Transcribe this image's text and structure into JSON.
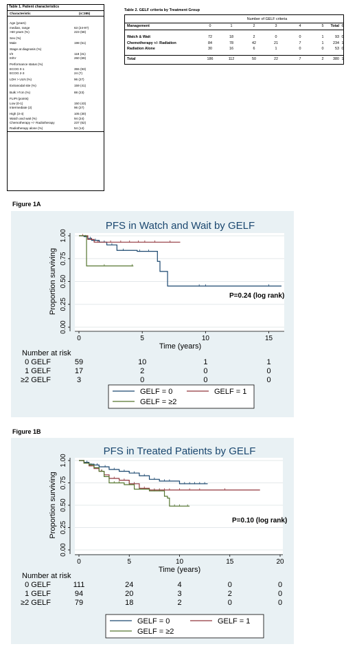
{
  "table1": {
    "title": "Table 1. Patient characteristics",
    "header": {
      "characteristic": "Characteristic",
      "n": "(n=385)"
    },
    "rows": [
      {
        "label": "Age (years)",
        "value": ""
      },
      {
        "label": "median, range",
        "value": "63 (24-97)"
      },
      {
        "label": ">60 years (%)",
        "value": "223 (58)"
      },
      {
        "label": "Sex (%)",
        "value": ""
      },
      {
        "label": "Male",
        "value": "198 (51)"
      },
      {
        "label": "Stage at diagnosis (%)",
        "value": ""
      },
      {
        "label": "I/II",
        "value": "118 (31)"
      },
      {
        "label": "III/IV",
        "value": "260 (69)"
      },
      {
        "label": "Performance status (%)",
        "value": ""
      },
      {
        "label": "ECOG 0-1",
        "value": "355 (93)"
      },
      {
        "label": "ECOG 2-3",
        "value": "24 (7)"
      },
      {
        "label": "LDH > ULN (%)",
        "value": "96 (27)"
      },
      {
        "label": "Extranodal site (%)",
        "value": "159 (41)"
      },
      {
        "label": "Bulk >7cm  (%)",
        "value": "88 (23)"
      },
      {
        "label": "FLIPI (points)",
        "value": ""
      },
      {
        "label": "Low (0-1)",
        "value": "150 (43)"
      },
      {
        "label": "Intermediate (2)",
        "value": "96 (27)"
      },
      {
        "label": "High (3-4)",
        "value": "105 (30)"
      },
      {
        "label": "Watch and wait (%)",
        "value": "94 (24)"
      },
      {
        "label": "Chemotherapy +/- Radiotherapy",
        "value": "237 (62)"
      },
      {
        "label": "Radiotherapy alone (%)",
        "value": "54 (14)"
      }
    ]
  },
  "table2": {
    "title": "Table 2. GELF criteria by Treatment Group",
    "superheader": "Number of GELF criteria",
    "col_header_label": "Management",
    "columns": [
      "0",
      "1",
      "2",
      "3",
      "4",
      "5",
      "6",
      "Total"
    ],
    "rows": [
      {
        "label": "Watch & Wait",
        "values": [
          "72",
          "18",
          "2",
          "0",
          "0",
          "1",
          "0",
          "93"
        ]
      },
      {
        "label": "Chemotherapy +/- Radiation",
        "values": [
          "84",
          "78",
          "42",
          "21",
          "7",
          "1",
          "1",
          "234"
        ]
      },
      {
        "label": "Radiation Alone",
        "values": [
          "30",
          "16",
          "6",
          "1",
          "0",
          "0",
          "0",
          "53"
        ]
      },
      {
        "label": "Total",
        "values": [
          "186",
          "112",
          "50",
          "22",
          "7",
          "2",
          "1",
          "380"
        ]
      }
    ]
  },
  "figure1a_label": "Figure 1A",
  "figure1b_label": "Figure 1B",
  "colors": {
    "gelf0": "#1a476f",
    "gelf1": "#90353b",
    "gelf2": "#55752f",
    "panel": "#e9f1f4"
  },
  "chart_data": [
    {
      "type": "line",
      "title": "PFS in Watch and Wait by GELF",
      "xlabel": "Time (years)",
      "ylabel": "Proportion surviving",
      "xlim": [
        0,
        16
      ],
      "ylim": [
        0,
        1
      ],
      "xticks": [
        "0",
        "5",
        "10",
        "15"
      ],
      "xtick_values": [
        0,
        5,
        10,
        15
      ],
      "yticks": [
        "0.00",
        "0.25",
        "0.50",
        "0.75",
        "1.00"
      ],
      "ytick_values": [
        0,
        0.25,
        0.5,
        0.75,
        1.0
      ],
      "grid": true,
      "annotation": "P=0.24 (log rank)",
      "series": [
        {
          "name": "GELF = 0",
          "color": "#1a476f",
          "steps": [
            [
              0,
              1.0
            ],
            [
              0.4,
              0.99
            ],
            [
              0.7,
              0.97
            ],
            [
              1.0,
              0.95
            ],
            [
              1.6,
              0.93
            ],
            [
              2.2,
              0.9
            ],
            [
              3.0,
              0.84
            ],
            [
              4.2,
              0.84
            ],
            [
              4.6,
              0.83
            ],
            [
              5.0,
              0.83
            ],
            [
              6.2,
              0.72
            ],
            [
              6.3,
              0.72
            ],
            [
              6.4,
              0.61
            ],
            [
              6.9,
              0.61
            ],
            [
              7.0,
              0.45
            ],
            [
              16,
              0.45
            ]
          ],
          "censor": [
            0.5,
            0.9,
            1.3,
            2.0,
            2.6,
            3.5,
            4.8,
            5.5,
            9.5,
            10.0,
            15.0
          ]
        },
        {
          "name": "GELF = 1",
          "color": "#90353b",
          "steps": [
            [
              0,
              1.0
            ],
            [
              0.7,
              0.96
            ],
            [
              1.2,
              0.93
            ],
            [
              2.0,
              0.93
            ],
            [
              8,
              0.93
            ]
          ],
          "censor": [
            0.3,
            1.0,
            1.5,
            2.5,
            3.3,
            4.0,
            4.7,
            5.2,
            6.0,
            7.2
          ]
        },
        {
          "name": "GELF = ≥2",
          "color": "#55752f",
          "steps": [
            [
              0,
              1.0
            ],
            [
              0.6,
              0.67
            ],
            [
              4.3,
              0.67
            ]
          ],
          "censor": [
            2.0,
            4.2
          ]
        }
      ],
      "at_risk": {
        "title": "Number at risk",
        "x_positions": [
          0,
          5,
          10,
          15
        ],
        "rows": [
          {
            "label": "0 GELF",
            "values": [
              "59",
              "10",
              "1",
              "1"
            ]
          },
          {
            "label": "1 GELF",
            "values": [
              "17",
              "2",
              "0",
              "0"
            ]
          },
          {
            "label": "≥2 GELF",
            "values": [
              "3",
              "0",
              "0",
              "0"
            ]
          }
        ]
      },
      "legend": [
        "GELF = 0",
        "GELF = 1",
        "GELF = ≥2"
      ],
      "legend_position": "bottom"
    },
    {
      "type": "line",
      "title": "PFS in Treated Patients by GELF",
      "xlabel": "Time (years)",
      "ylabel": "Proportion surviving",
      "xlim": [
        0,
        20
      ],
      "ylim": [
        0,
        1
      ],
      "xticks": [
        "0",
        "5",
        "10",
        "15",
        "20"
      ],
      "xtick_values": [
        0,
        5,
        10,
        15,
        20
      ],
      "yticks": [
        "0.00",
        "0.25",
        "0.50",
        "0.75",
        "1.00"
      ],
      "ytick_values": [
        0,
        0.25,
        0.5,
        0.75,
        1.0
      ],
      "grid": true,
      "annotation": "P=0.10 (log rank)",
      "series": [
        {
          "name": "GELF = 0",
          "color": "#1a476f",
          "steps": [
            [
              0,
              1.0
            ],
            [
              0.5,
              0.98
            ],
            [
              1.0,
              0.96
            ],
            [
              1.5,
              0.95
            ],
            [
              2.0,
              0.93
            ],
            [
              3.0,
              0.9
            ],
            [
              4.0,
              0.88
            ],
            [
              5.0,
              0.86
            ],
            [
              6.0,
              0.83
            ],
            [
              7.0,
              0.79
            ],
            [
              8.0,
              0.77
            ],
            [
              10.0,
              0.74
            ],
            [
              12.8,
              0.74
            ]
          ],
          "censor": [
            0.8,
            1.8,
            2.6,
            3.5,
            4.5,
            5.5,
            6.5,
            7.5,
            8.5,
            9.0,
            10.5,
            11.0,
            11.5,
            12.0,
            12.5
          ]
        },
        {
          "name": "GELF = 1",
          "color": "#90353b",
          "steps": [
            [
              0,
              1.0
            ],
            [
              0.5,
              0.97
            ],
            [
              1.0,
              0.94
            ],
            [
              1.5,
              0.91
            ],
            [
              2.0,
              0.88
            ],
            [
              2.5,
              0.84
            ],
            [
              3.0,
              0.8
            ],
            [
              4.0,
              0.78
            ],
            [
              5.0,
              0.74
            ],
            [
              6.0,
              0.69
            ],
            [
              7.0,
              0.67
            ],
            [
              18,
              0.67
            ]
          ],
          "censor": [
            1.2,
            2.2,
            3.5,
            4.5,
            5.5,
            6.5,
            7.5,
            8.0,
            8.5,
            9.0,
            10.0,
            11.0,
            12.0,
            14.5
          ]
        },
        {
          "name": "GELF = ≥2",
          "color": "#55752f",
          "steps": [
            [
              0,
              1.0
            ],
            [
              0.5,
              0.97
            ],
            [
              1.0,
              0.95
            ],
            [
              1.5,
              0.92
            ],
            [
              2.0,
              0.88
            ],
            [
              2.5,
              0.82
            ],
            [
              3.0,
              0.75
            ],
            [
              4.5,
              0.73
            ],
            [
              5.5,
              0.68
            ],
            [
              7.0,
              0.66
            ],
            [
              8.5,
              0.6
            ],
            [
              8.8,
              0.58
            ],
            [
              9.0,
              0.49
            ],
            [
              11.0,
              0.49
            ]
          ],
          "censor": [
            1.2,
            2.3,
            3.5,
            4.0,
            5.0,
            6.0,
            7.5,
            8.0,
            9.5,
            10.0,
            10.8
          ]
        }
      ],
      "at_risk": {
        "title": "Number at risk",
        "x_positions": [
          0,
          5,
          10,
          15,
          20
        ],
        "rows": [
          {
            "label": "0 GELF",
            "values": [
              "111",
              "24",
              "4",
              "0",
              "0"
            ]
          },
          {
            "label": "1 GELF",
            "values": [
              "94",
              "20",
              "3",
              "2",
              "0"
            ]
          },
          {
            "label": "≥2 GELF",
            "values": [
              "79",
              "18",
              "2",
              "0",
              "0"
            ]
          }
        ]
      },
      "legend": [
        "GELF = 0",
        "GELF = 1",
        "GELF = ≥2"
      ],
      "legend_position": "bottom"
    }
  ]
}
